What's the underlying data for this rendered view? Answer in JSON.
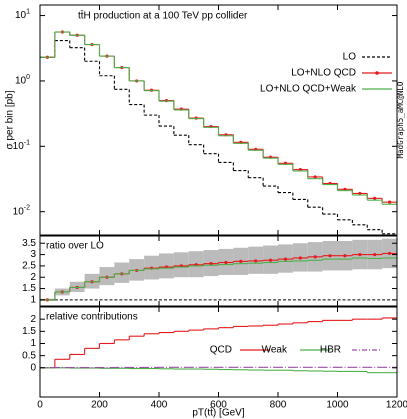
{
  "chart_data": [
    {
      "type": "histogram",
      "title": "tt̄H production at a 100 TeV pp collider",
      "ylabel": "σ per bin [pb]",
      "side_note": "MadGraph5_aMC@NLO",
      "log_y": true,
      "legend": "top-right",
      "bins": [
        0,
        50,
        100,
        150,
        200,
        250,
        300,
        350,
        400,
        450,
        500,
        550,
        600,
        650,
        700,
        750,
        800,
        850,
        900,
        950,
        1000,
        1050,
        1100,
        1150,
        1200
      ],
      "ylim": [
        0.0044,
        14.5
      ],
      "yticks": [
        {
          "value": 10,
          "label": "10^1"
        },
        {
          "value": 1,
          "label": "10^0"
        },
        {
          "value": 0.1,
          "label": "10^-1"
        },
        {
          "value": 0.01,
          "label": "10^-2"
        }
      ],
      "series": [
        {
          "name": "LO",
          "color": "#000000",
          "style": "dashed",
          "values": [
            2.3,
            4.15,
            3.23,
            2.0,
            1.2,
            0.744,
            0.435,
            0.3,
            0.204,
            0.148,
            0.106,
            0.077,
            0.0566,
            0.0426,
            0.0331,
            0.0247,
            0.0196,
            0.0154,
            0.0117,
            0.0092,
            0.0075,
            0.0063,
            0.0053,
            0.0046
          ]
        },
        {
          "name": "LO+NLO QCD",
          "color": "#e41a1c",
          "style": "points",
          "values": [
            2.3,
            5.6,
            5.0,
            3.6,
            2.4,
            1.6,
            1.0,
            0.72,
            0.5,
            0.37,
            0.27,
            0.2,
            0.15,
            0.115,
            0.09,
            0.068,
            0.055,
            0.044,
            0.034,
            0.027,
            0.022,
            0.019,
            0.016,
            0.014
          ]
        },
        {
          "name": "LO+NLO QCD+Weak",
          "color": "#4daf4a",
          "style": "solid",
          "values": [
            2.3,
            5.6,
            5.0,
            3.6,
            2.4,
            1.6,
            1.0,
            0.71,
            0.49,
            0.36,
            0.265,
            0.195,
            0.145,
            0.111,
            0.087,
            0.066,
            0.053,
            0.042,
            0.032,
            0.026,
            0.021,
            0.018,
            0.015,
            0.013
          ]
        }
      ]
    },
    {
      "type": "histogram",
      "title": "ratio over LO",
      "bins": [
        0,
        50,
        100,
        150,
        200,
        250,
        300,
        350,
        400,
        450,
        500,
        550,
        600,
        650,
        700,
        750,
        800,
        850,
        900,
        950,
        1000,
        1050,
        1100,
        1150,
        1200
      ],
      "ylim": [
        0.73,
        3.82
      ],
      "yticks": [
        1,
        1.5,
        2,
        2.5,
        3,
        3.5
      ],
      "band": {
        "color": "#bbbbbb",
        "low": [
          0.95,
          1.2,
          1.35,
          1.5,
          1.65,
          1.75,
          1.85,
          1.9,
          1.95,
          2.0,
          2.0,
          2.05,
          2.1,
          2.1,
          2.15,
          2.15,
          2.2,
          2.25,
          2.25,
          2.3,
          2.3,
          2.35,
          2.35,
          2.4
        ],
        "high": [
          1.05,
          1.5,
          1.8,
          2.15,
          2.45,
          2.65,
          2.8,
          2.95,
          3.05,
          3.1,
          3.15,
          3.2,
          3.25,
          3.3,
          3.35,
          3.4,
          3.45,
          3.5,
          3.55,
          3.6,
          3.6,
          3.65,
          3.65,
          3.7
        ]
      },
      "series": [
        {
          "color": "#000000",
          "style": "dashed",
          "values": [
            1,
            1,
            1,
            1,
            1,
            1,
            1,
            1,
            1,
            1,
            1,
            1,
            1,
            1,
            1,
            1,
            1,
            1,
            1,
            1,
            1,
            1,
            1,
            1
          ]
        },
        {
          "color": "#e41a1c",
          "style": "points",
          "values": [
            1.0,
            1.35,
            1.55,
            1.8,
            2.0,
            2.15,
            2.3,
            2.4,
            2.45,
            2.5,
            2.55,
            2.6,
            2.65,
            2.7,
            2.72,
            2.75,
            2.8,
            2.85,
            2.9,
            2.95,
            2.95,
            3.0,
            3.0,
            3.05
          ]
        },
        {
          "color": "#4daf4a",
          "style": "solid",
          "values": [
            1.0,
            1.35,
            1.55,
            1.8,
            2.0,
            2.15,
            2.3,
            2.37,
            2.4,
            2.45,
            2.5,
            2.53,
            2.56,
            2.6,
            2.62,
            2.65,
            2.7,
            2.72,
            2.75,
            2.8,
            2.8,
            2.85,
            2.83,
            2.85
          ]
        }
      ]
    },
    {
      "type": "histogram",
      "title": "relative contributions",
      "xlabel": "pT(tt̄) [GeV]",
      "legend": "middle-right",
      "bins": [
        0,
        50,
        100,
        150,
        200,
        250,
        300,
        350,
        400,
        450,
        500,
        550,
        600,
        650,
        700,
        750,
        800,
        850,
        900,
        950,
        1000,
        1050,
        1100,
        1150,
        1200
      ],
      "xlim": [
        0,
        1200
      ],
      "xticks": [
        0,
        200,
        400,
        600,
        800,
        1000,
        1200
      ],
      "ylim": [
        -1.2,
        2.5
      ],
      "yticks": [
        0,
        0.5,
        1,
        1.5,
        2
      ],
      "series": [
        {
          "name": "QCD",
          "color": "#e41a1c",
          "style": "solid",
          "values": [
            0,
            0.35,
            0.55,
            0.8,
            1.0,
            1.15,
            1.3,
            1.4,
            1.45,
            1.5,
            1.55,
            1.6,
            1.65,
            1.7,
            1.72,
            1.75,
            1.8,
            1.85,
            1.9,
            1.95,
            1.95,
            2.0,
            2.0,
            2.05
          ]
        },
        {
          "name": "Weak",
          "color": "#4daf4a",
          "style": "solid",
          "values": [
            0,
            0,
            -0.01,
            -0.01,
            -0.02,
            -0.02,
            -0.03,
            -0.03,
            -0.04,
            -0.05,
            -0.05,
            -0.06,
            -0.07,
            -0.08,
            -0.09,
            -0.1,
            -0.1,
            -0.12,
            -0.13,
            -0.14,
            -0.15,
            -0.15,
            -0.2,
            -0.2
          ]
        },
        {
          "name": "HBR",
          "color": "#984ea3",
          "style": "dashdot",
          "values": [
            0.01,
            0.01,
            0.01,
            0.01,
            0.01,
            0.015,
            0.015,
            0.015,
            0.02,
            0.02,
            0.02,
            0.02,
            0.02,
            0.02,
            0.02,
            0.02,
            0.02,
            0.02,
            0.02,
            0.02,
            0.02,
            0.02,
            0.02,
            0.02
          ]
        }
      ]
    }
  ]
}
